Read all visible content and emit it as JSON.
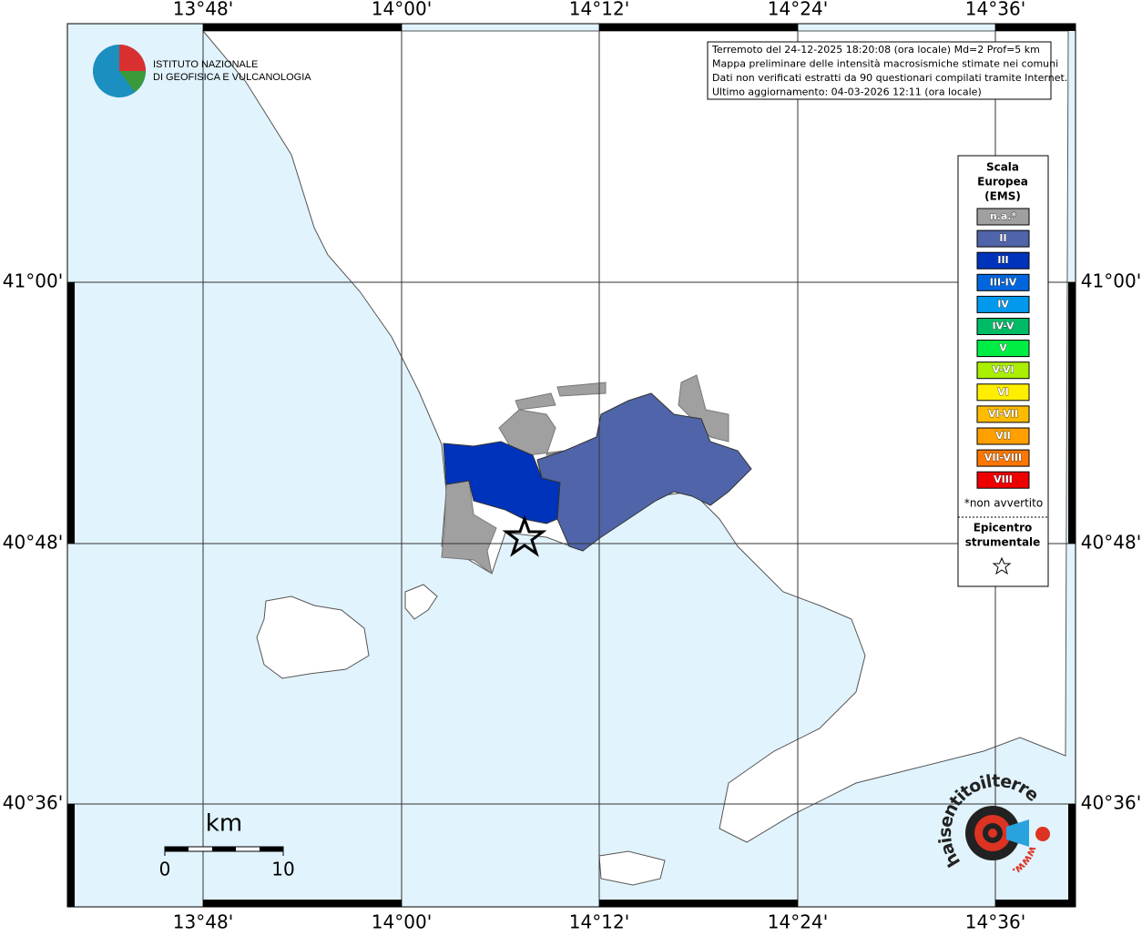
{
  "map": {
    "lon_labels": [
      "13°48'",
      "14°00'",
      "14°12'",
      "14°24'",
      "14°36'"
    ],
    "lat_labels": [
      "41°00'",
      "40°48'",
      "40°36'"
    ],
    "logo": {
      "line1": "ISTITUTO NAZIONALE",
      "line2": "DI GEOFISICA E VULCANOLOGIA"
    },
    "info": [
      "Terremoto del 24-12-2025 18:20:08 (ora locale) Md=2 Prof=5 km",
      "Mappa preliminare delle intensità macrosismiche stimate nei comuni",
      "Dati non verificati estratti da 90 questionari compilati tramite Internet.",
      "Ultimo aggiornamento: 04-03-2026 12:11 (ora locale)"
    ],
    "legend": {
      "title": [
        "Scala",
        "Europea",
        "(EMS)"
      ],
      "items": [
        {
          "label": "n.a.*",
          "color": "#a0a0a0"
        },
        {
          "label": "II",
          "color": "#5064aa"
        },
        {
          "label": "III",
          "color": "#0033bb"
        },
        {
          "label": "III-IV",
          "color": "#0066dd"
        },
        {
          "label": "IV",
          "color": "#0099ee"
        },
        {
          "label": "IV-V",
          "color": "#00bb66"
        },
        {
          "label": "V",
          "color": "#00ee44"
        },
        {
          "label": "V-VI",
          "color": "#aaee00"
        },
        {
          "label": "VI",
          "color": "#ffee00"
        },
        {
          "label": "VI-VII",
          "color": "#ffbb00"
        },
        {
          "label": "VII",
          "color": "#ffa000"
        },
        {
          "label": "VII-VIII",
          "color": "#ff7700"
        },
        {
          "label": "VIII",
          "color": "#ee0000"
        }
      ],
      "note": "*non avvertito",
      "epicenter": [
        "Epicentro",
        "strumentale"
      ]
    },
    "scale": {
      "unit": "km",
      "labels": [
        "0",
        "10"
      ]
    },
    "badge": {
      "text": "haisentitoilterremoto.it",
      "www": "www."
    }
  }
}
